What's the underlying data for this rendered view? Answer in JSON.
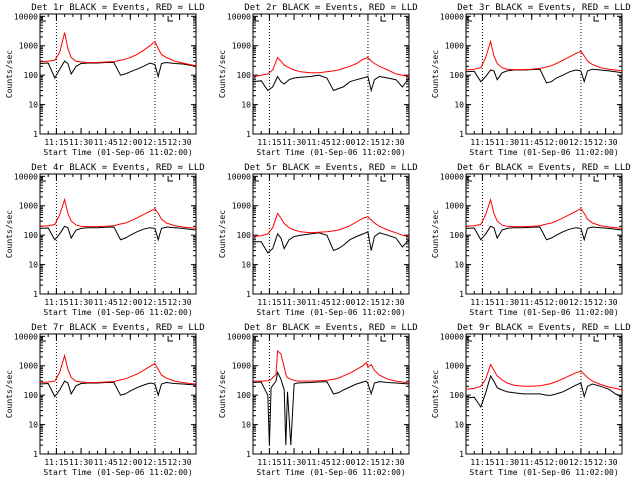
{
  "figure": {
    "xaxis": {
      "label": "Start Time (01-Sep-06 11:02:00)",
      "tick_labels": [
        "11:15",
        "11:30",
        "11:45",
        "12:00",
        "12:15",
        "12:30"
      ],
      "tick_minutes": [
        13,
        28,
        43,
        58,
        73,
        88
      ],
      "range_minutes": [
        3,
        98
      ]
    },
    "yaxis": {
      "label": "Counts/sec",
      "scale": "log",
      "range": [
        1,
        12000
      ],
      "tick_labels": [
        "1",
        "10",
        "100",
        "1000",
        "10000"
      ],
      "tick_values": [
        1,
        10,
        100,
        1000,
        10000
      ]
    },
    "series_colors": {
      "events": "#000000",
      "lld": "#ff0000"
    },
    "reference_lines_minutes": [
      13,
      73
    ]
  },
  "chart_data": [
    {
      "type": "line",
      "title": "Det 1r BLACK = Events, RED = LLD",
      "xlabel": "Start Time (01-Sep-06 11:02:00)",
      "ylabel": "Counts/sec",
      "ylim": [
        1,
        12000
      ],
      "x_minutes": [
        3,
        8,
        12,
        15,
        18,
        20,
        22,
        25,
        28,
        32,
        38,
        43,
        48,
        52,
        55,
        58,
        62,
        66,
        70,
        73,
        75,
        77,
        80,
        85,
        90,
        94,
        98
      ],
      "series": [
        {
          "name": "Events",
          "values": [
            250,
            260,
            80,
            160,
            300,
            250,
            110,
            200,
            250,
            260,
            260,
            270,
            270,
            100,
            110,
            130,
            160,
            200,
            260,
            230,
            90,
            250,
            270,
            250,
            240,
            220,
            200
          ]
        },
        {
          "name": "LLD",
          "values": [
            280,
            300,
            320,
            600,
            2800,
            800,
            400,
            300,
            280,
            270,
            270,
            280,
            290,
            320,
            350,
            400,
            500,
            700,
            1000,
            1400,
            800,
            500,
            400,
            300,
            260,
            230,
            210
          ]
        }
      ]
    },
    {
      "type": "line",
      "title": "Det 2r BLACK = Events, RED = LLD",
      "xlabel": "Start Time (01-Sep-06 11:02:00)",
      "ylabel": "Counts/sec",
      "ylim": [
        1,
        12000
      ],
      "x_minutes": [
        3,
        8,
        12,
        15,
        18,
        20,
        22,
        25,
        28,
        32,
        38,
        43,
        48,
        52,
        55,
        58,
        62,
        66,
        70,
        73,
        75,
        77,
        80,
        85,
        90,
        94,
        98
      ],
      "series": [
        {
          "name": "Events",
          "values": [
            60,
            65,
            30,
            40,
            90,
            60,
            50,
            70,
            80,
            85,
            90,
            100,
            80,
            30,
            35,
            40,
            60,
            70,
            80,
            90,
            30,
            70,
            90,
            80,
            70,
            40,
            80
          ]
        },
        {
          "name": "LLD",
          "values": [
            90,
            100,
            110,
            150,
            400,
            300,
            220,
            180,
            150,
            130,
            120,
            120,
            130,
            140,
            150,
            170,
            200,
            250,
            350,
            400,
            300,
            250,
            200,
            150,
            110,
            100,
            90
          ]
        }
      ]
    },
    {
      "type": "line",
      "title": "Det 3r BLACK = Events, RED = LLD",
      "xlabel": "Start Time (01-Sep-06 11:02:00)",
      "ylabel": "Counts/sec",
      "ylim": [
        1,
        12000
      ],
      "x_minutes": [
        3,
        8,
        12,
        15,
        18,
        20,
        22,
        25,
        28,
        32,
        38,
        43,
        48,
        52,
        55,
        58,
        62,
        66,
        70,
        73,
        75,
        77,
        80,
        85,
        90,
        94,
        98
      ],
      "series": [
        {
          "name": "Events",
          "values": [
            130,
            135,
            60,
            90,
            150,
            140,
            70,
            120,
            140,
            150,
            150,
            155,
            160,
            55,
            60,
            80,
            100,
            130,
            150,
            140,
            60,
            140,
            160,
            150,
            140,
            130,
            120
          ]
        },
        {
          "name": "LLD",
          "values": [
            150,
            160,
            180,
            400,
            1400,
            450,
            250,
            180,
            160,
            155,
            155,
            160,
            170,
            190,
            210,
            250,
            320,
            420,
            550,
            650,
            450,
            300,
            230,
            180,
            160,
            150,
            140
          ]
        }
      ]
    },
    {
      "type": "line",
      "title": "Det 4r BLACK = Events, RED = LLD",
      "xlabel": "Start Time (01-Sep-06 11:02:00)",
      "ylabel": "Counts/sec",
      "ylim": [
        1,
        12000
      ],
      "x_minutes": [
        3,
        8,
        12,
        15,
        18,
        20,
        22,
        25,
        28,
        32,
        38,
        43,
        48,
        52,
        55,
        58,
        62,
        66,
        70,
        73,
        75,
        77,
        80,
        85,
        90,
        94,
        98
      ],
      "series": [
        {
          "name": "Events",
          "values": [
            170,
            175,
            70,
            110,
            200,
            180,
            80,
            150,
            170,
            180,
            180,
            185,
            190,
            70,
            80,
            100,
            130,
            160,
            180,
            170,
            70,
            170,
            190,
            180,
            170,
            160,
            150
          ]
        },
        {
          "name": "LLD",
          "values": [
            200,
            210,
            230,
            500,
            1600,
            550,
            300,
            220,
            200,
            195,
            195,
            200,
            210,
            240,
            260,
            300,
            380,
            500,
            650,
            800,
            550,
            350,
            260,
            210,
            190,
            180,
            170
          ]
        }
      ]
    },
    {
      "type": "line",
      "title": "Det 5r BLACK = Events, RED = LLD",
      "xlabel": "Start Time (01-Sep-06 11:02:00)",
      "ylabel": "Counts/sec",
      "ylim": [
        1,
        12000
      ],
      "x_minutes": [
        3,
        8,
        12,
        15,
        18,
        20,
        22,
        25,
        28,
        32,
        38,
        43,
        48,
        52,
        55,
        58,
        62,
        66,
        70,
        73,
        75,
        77,
        80,
        85,
        90,
        94,
        98
      ],
      "series": [
        {
          "name": "Events",
          "values": [
            60,
            60,
            25,
            35,
            110,
            80,
            35,
            70,
            90,
            100,
            110,
            120,
            100,
            30,
            35,
            45,
            70,
            90,
            110,
            130,
            30,
            90,
            120,
            100,
            80,
            40,
            70
          ]
        },
        {
          "name": "LLD",
          "values": [
            90,
            95,
            110,
            180,
            550,
            380,
            250,
            180,
            150,
            130,
            120,
            125,
            130,
            140,
            150,
            170,
            210,
            280,
            380,
            420,
            330,
            260,
            200,
            150,
            120,
            100,
            90
          ]
        }
      ]
    },
    {
      "type": "line",
      "title": "Det 6r BLACK = Events, RED = LLD",
      "xlabel": "Start Time (01-Sep-06 11:02:00)",
      "ylabel": "Counts/sec",
      "ylim": [
        1,
        12000
      ],
      "x_minutes": [
        3,
        8,
        12,
        15,
        18,
        20,
        22,
        25,
        28,
        32,
        38,
        43,
        48,
        52,
        55,
        58,
        62,
        66,
        70,
        73,
        75,
        77,
        80,
        85,
        90,
        94,
        98
      ],
      "series": [
        {
          "name": "Events",
          "values": [
            170,
            175,
            70,
            110,
            200,
            180,
            80,
            150,
            170,
            180,
            180,
            185,
            190,
            70,
            80,
            100,
            130,
            160,
            180,
            170,
            70,
            170,
            190,
            180,
            170,
            160,
            150
          ]
        },
        {
          "name": "LLD",
          "values": [
            200,
            210,
            230,
            500,
            1600,
            550,
            300,
            220,
            200,
            195,
            195,
            200,
            210,
            240,
            260,
            300,
            380,
            500,
            650,
            800,
            550,
            350,
            260,
            210,
            190,
            180,
            170
          ]
        }
      ]
    },
    {
      "type": "line",
      "title": "Det 7r BLACK = Events, RED = LLD",
      "xlabel": "Start Time (01-Sep-06 11:02:00)",
      "ylabel": "Counts/sec",
      "ylim": [
        1,
        12000
      ],
      "x_minutes": [
        3,
        8,
        12,
        15,
        18,
        20,
        22,
        25,
        28,
        32,
        38,
        43,
        48,
        52,
        55,
        58,
        62,
        66,
        70,
        73,
        75,
        77,
        80,
        85,
        90,
        94,
        98
      ],
      "series": [
        {
          "name": "Events",
          "values": [
            240,
            250,
            90,
            150,
            300,
            260,
            110,
            210,
            250,
            260,
            260,
            270,
            270,
            100,
            110,
            140,
            180,
            220,
            260,
            240,
            100,
            240,
            270,
            250,
            240,
            230,
            220
          ]
        },
        {
          "name": "LLD",
          "values": [
            270,
            280,
            300,
            600,
            2200,
            750,
            400,
            300,
            280,
            270,
            270,
            280,
            290,
            330,
            360,
            420,
            520,
            700,
            950,
            1200,
            750,
            480,
            380,
            300,
            270,
            250,
            240
          ]
        }
      ]
    },
    {
      "type": "line",
      "title": "Det 8r BLACK = Events, RED = LLD",
      "xlabel": "Start Time (01-Sep-06 11:02:00)",
      "ylabel": "Counts/sec",
      "ylim": [
        1,
        12000
      ],
      "x_minutes": [
        3,
        8,
        12,
        13,
        14,
        17,
        18,
        20,
        22,
        23,
        24,
        26,
        28,
        30,
        38,
        43,
        48,
        52,
        55,
        58,
        62,
        66,
        70,
        72,
        73,
        75,
        77,
        80,
        85,
        90,
        94,
        98
      ],
      "series": [
        {
          "name": "Events",
          "values": [
            270,
            280,
            100,
            2,
            180,
            300,
            600,
            350,
            150,
            2,
            130,
            2,
            240,
            260,
            270,
            280,
            290,
            110,
            120,
            150,
            190,
            240,
            280,
            300,
            250,
            110,
            260,
            290,
            270,
            260,
            250,
            240
          ]
        },
        {
          "name": "LLD",
          "values": [
            300,
            300,
            310,
            320,
            350,
            500,
            3200,
            2500,
            900,
            500,
            400,
            350,
            320,
            300,
            300,
            310,
            320,
            350,
            380,
            450,
            560,
            750,
            1000,
            1300,
            900,
            1100,
            700,
            480,
            350,
            300,
            280,
            260
          ]
        }
      ]
    },
    {
      "type": "line",
      "title": "Det 9r BLACK = Events, RED = LLD",
      "xlabel": "Start Time (01-Sep-06 11:02:00)",
      "ylabel": "Counts/sec",
      "ylim": [
        1,
        12000
      ],
      "x_minutes": [
        3,
        8,
        12,
        15,
        18,
        20,
        22,
        25,
        28,
        32,
        38,
        43,
        48,
        52,
        55,
        58,
        62,
        66,
        70,
        73,
        75,
        77,
        80,
        85,
        90,
        94,
        98
      ],
      "series": [
        {
          "name": "Events",
          "values": [
            80,
            85,
            40,
            120,
            450,
            300,
            180,
            150,
            130,
            120,
            110,
            110,
            110,
            100,
            100,
            110,
            130,
            170,
            220,
            260,
            90,
            200,
            240,
            200,
            160,
            110,
            90
          ]
        },
        {
          "name": "LLD",
          "values": [
            160,
            170,
            200,
            350,
            1100,
            700,
            450,
            330,
            260,
            220,
            200,
            200,
            210,
            230,
            250,
            290,
            360,
            460,
            580,
            650,
            520,
            400,
            300,
            230,
            190,
            170,
            150
          ]
        }
      ]
    }
  ]
}
